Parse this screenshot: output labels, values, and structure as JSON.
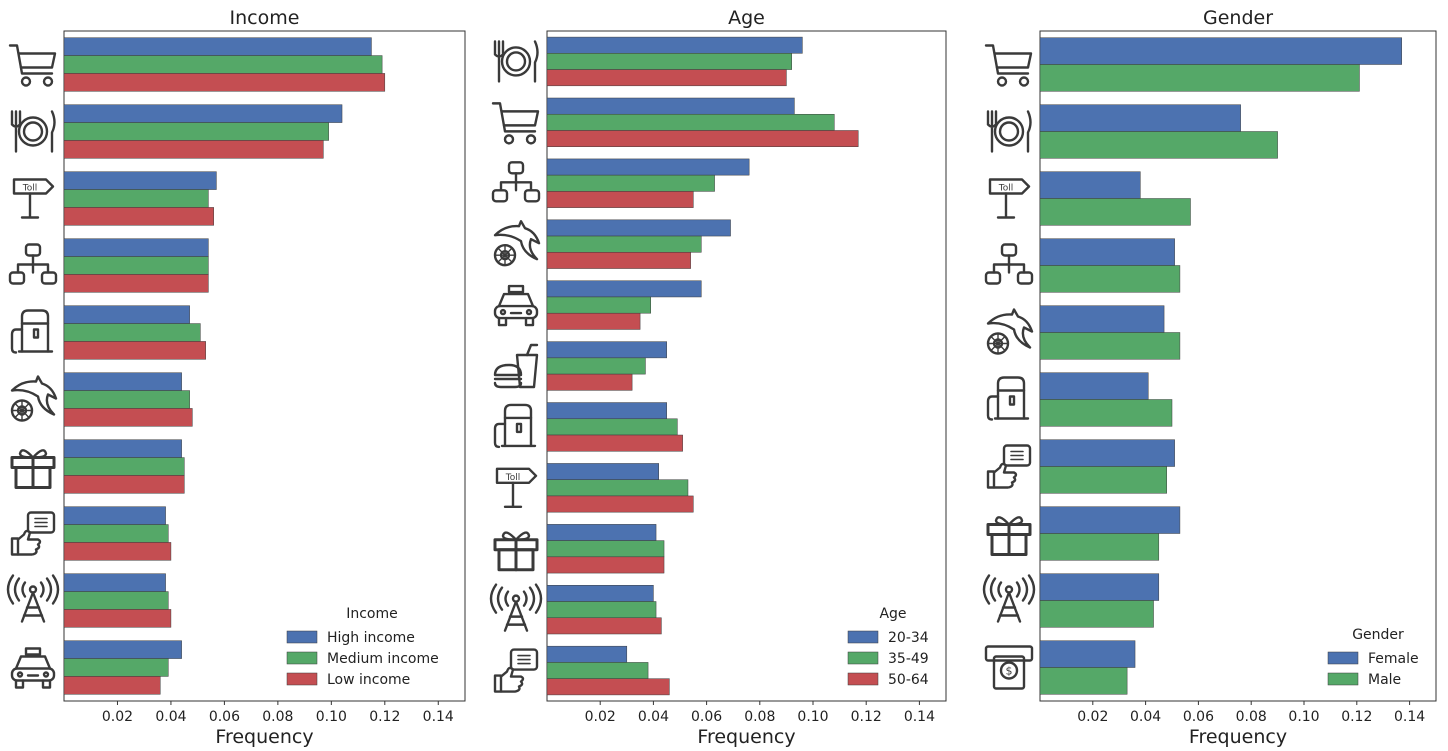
{
  "chart_data": [
    {
      "type": "bar",
      "orientation": "horizontal",
      "title": "Income",
      "xlabel": "Frequency",
      "ylabel": "",
      "xlim": [
        0,
        0.15
      ],
      "xticks": [
        "0.02",
        "0.04",
        "0.06",
        "0.08",
        "0.10",
        "0.12",
        "0.14"
      ],
      "categories": [
        "cart-icon",
        "plate-icon",
        "toll-sign-icon",
        "network-icon",
        "fuel-pump-icon",
        "shark-wheel-icon",
        "gift-icon",
        "thumbs-up-card-icon",
        "antenna-icon",
        "taxi-icon"
      ],
      "series": [
        {
          "name": "High income",
          "color": "#4c72b0",
          "values": [
            0.115,
            0.104,
            0.057,
            0.054,
            0.047,
            0.044,
            0.044,
            0.038,
            0.038,
            0.044
          ]
        },
        {
          "name": "Medium income",
          "color": "#55a868",
          "values": [
            0.119,
            0.099,
            0.054,
            0.054,
            0.051,
            0.047,
            0.045,
            0.039,
            0.039,
            0.039
          ]
        },
        {
          "name": "Low income",
          "color": "#c44e52",
          "values": [
            0.12,
            0.097,
            0.056,
            0.054,
            0.053,
            0.048,
            0.045,
            0.04,
            0.04,
            0.036
          ]
        }
      ],
      "legend": {
        "title": "Income",
        "position": "bottom-right"
      },
      "grid": false
    },
    {
      "type": "bar",
      "orientation": "horizontal",
      "title": "Age",
      "xlabel": "Frequency",
      "ylabel": "",
      "xlim": [
        0,
        0.15
      ],
      "xticks": [
        "0.02",
        "0.04",
        "0.06",
        "0.08",
        "0.10",
        "0.12",
        "0.14"
      ],
      "categories": [
        "plate-icon",
        "cart-icon",
        "network-icon",
        "shark-wheel-icon",
        "taxi-icon",
        "fast-food-icon",
        "fuel-pump-icon",
        "toll-sign-icon",
        "gift-icon",
        "antenna-icon",
        "thumbs-up-card-icon"
      ],
      "series": [
        {
          "name": "20-34",
          "color": "#4c72b0",
          "values": [
            0.096,
            0.093,
            0.076,
            0.069,
            0.058,
            0.045,
            0.045,
            0.042,
            0.041,
            0.04,
            0.03
          ]
        },
        {
          "name": "35-49",
          "color": "#55a868",
          "values": [
            0.092,
            0.108,
            0.063,
            0.058,
            0.039,
            0.037,
            0.049,
            0.053,
            0.044,
            0.041,
            0.038
          ]
        },
        {
          "name": "50-64",
          "color": "#c44e52",
          "values": [
            0.09,
            0.117,
            0.055,
            0.054,
            0.035,
            0.032,
            0.051,
            0.055,
            0.044,
            0.043,
            0.046
          ]
        }
      ],
      "legend": {
        "title": "Age",
        "position": "bottom-right"
      },
      "grid": false
    },
    {
      "type": "bar",
      "orientation": "horizontal",
      "title": "Gender",
      "xlabel": "Frequency",
      "ylabel": "",
      "xlim": [
        0,
        0.15
      ],
      "xticks": [
        "0.02",
        "0.04",
        "0.06",
        "0.08",
        "0.10",
        "0.12",
        "0.14"
      ],
      "categories": [
        "cart-icon",
        "plate-icon",
        "toll-sign-icon",
        "network-icon",
        "shark-wheel-icon",
        "fuel-pump-icon",
        "thumbs-up-card-icon",
        "gift-icon",
        "antenna-icon",
        "atm-icon"
      ],
      "series": [
        {
          "name": "Female",
          "color": "#4c72b0",
          "values": [
            0.137,
            0.076,
            0.038,
            0.051,
            0.047,
            0.041,
            0.051,
            0.053,
            0.045,
            0.036
          ]
        },
        {
          "name": "Male",
          "color": "#55a868",
          "values": [
            0.121,
            0.09,
            0.057,
            0.053,
            0.053,
            0.05,
            0.048,
            0.045,
            0.043,
            0.033
          ]
        }
      ],
      "legend": {
        "title": "Gender",
        "position": "bottom-right"
      },
      "grid": false
    }
  ]
}
